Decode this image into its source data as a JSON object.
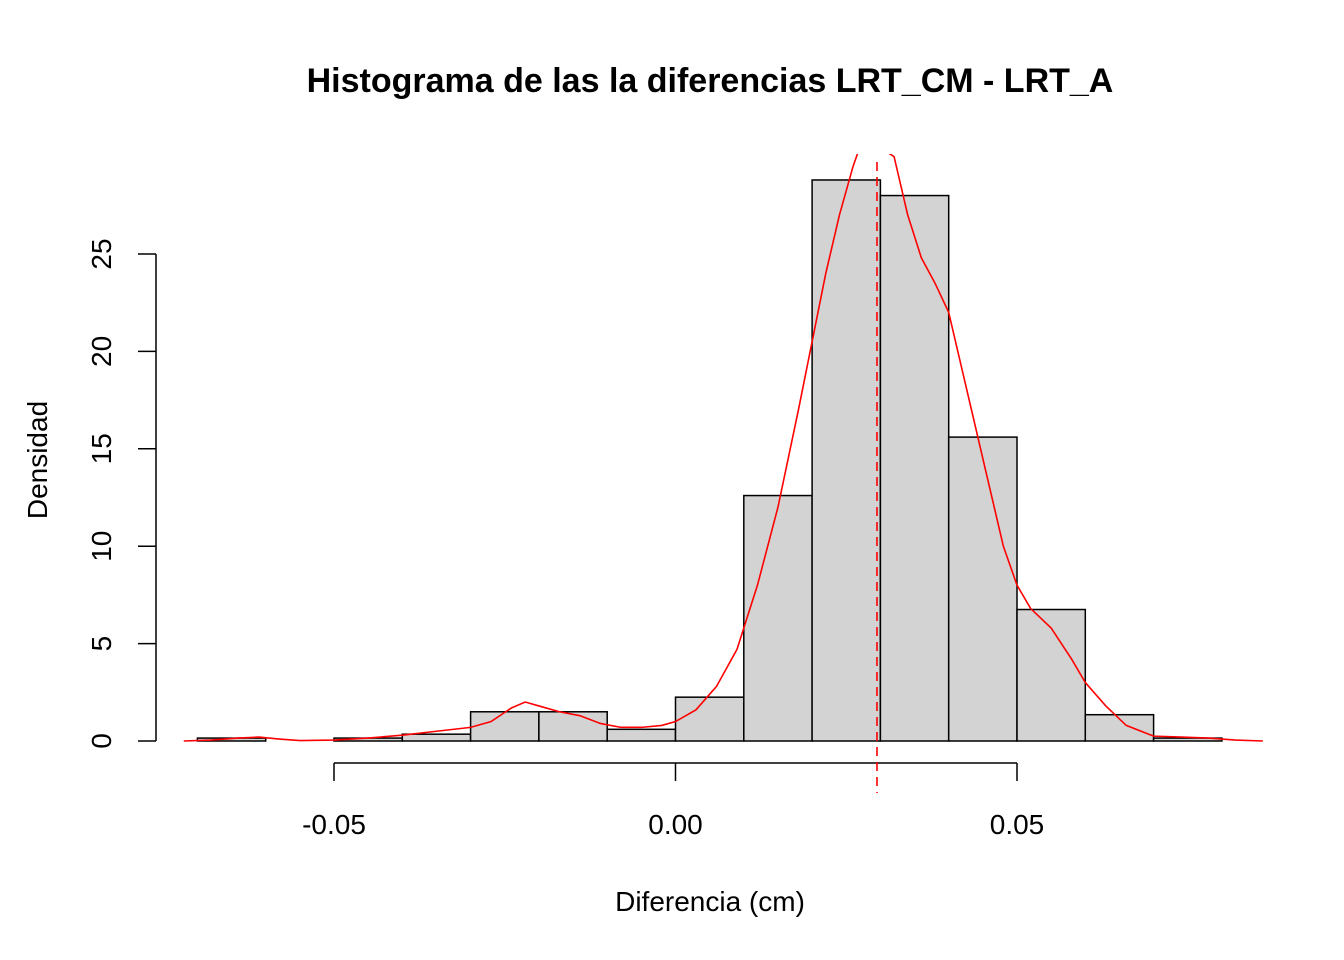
{
  "chart_data": {
    "type": "bar",
    "title": "Histograma de las la diferencias LRT_CM - LRT_A",
    "xlabel": "Diferencia (cm)",
    "ylabel": "Densidad",
    "xlim": [
      -0.07,
      0.08
    ],
    "ylim": [
      0,
      29
    ],
    "x_ticks": [
      -0.05,
      0.0,
      0.05
    ],
    "x_tick_labels": [
      "-0.05",
      "0.00",
      "0.05"
    ],
    "y_ticks": [
      0,
      5,
      10,
      15,
      20,
      25
    ],
    "y_tick_labels": [
      "0",
      "5",
      "10",
      "15",
      "20",
      "25"
    ],
    "bin_edges": [
      -0.07,
      -0.06,
      -0.05,
      -0.04,
      -0.03,
      -0.02,
      -0.01,
      0.0,
      0.01,
      0.02,
      0.03,
      0.04,
      0.05,
      0.06,
      0.07,
      0.08
    ],
    "values": [
      0.15,
      0.0,
      0.15,
      0.35,
      1.5,
      1.5,
      0.6,
      2.25,
      12.6,
      28.8,
      28.0,
      15.6,
      6.75,
      1.35,
      0.15
    ],
    "density_curve": {
      "color": "#ff0000",
      "x": [
        -0.072,
        -0.068,
        -0.064,
        -0.061,
        -0.058,
        -0.055,
        -0.05,
        -0.045,
        -0.04,
        -0.035,
        -0.03,
        -0.027,
        -0.024,
        -0.022,
        -0.02,
        -0.017,
        -0.014,
        -0.011,
        -0.008,
        -0.005,
        -0.002,
        0.0,
        0.003,
        0.006,
        0.009,
        0.012,
        0.015,
        0.018,
        0.02,
        0.022,
        0.024,
        0.026,
        0.0275,
        0.032,
        0.034,
        0.036,
        0.038,
        0.04,
        0.042,
        0.044,
        0.046,
        0.048,
        0.05,
        0.052,
        0.055,
        0.058,
        0.06,
        0.063,
        0.066,
        0.07,
        0.074,
        0.078,
        0.082,
        0.086
      ],
      "y": [
        0.0,
        0.05,
        0.15,
        0.2,
        0.1,
        0.02,
        0.05,
        0.15,
        0.3,
        0.5,
        0.7,
        1.0,
        1.7,
        2.0,
        1.8,
        1.5,
        1.3,
        0.9,
        0.7,
        0.7,
        0.8,
        1.0,
        1.6,
        2.8,
        4.7,
        8.0,
        12.0,
        17.0,
        20.5,
        24.0,
        27.0,
        29.5,
        31.0,
        30.0,
        27.0,
        24.8,
        23.5,
        22.0,
        19.0,
        16.0,
        13.0,
        10.0,
        8.0,
        6.8,
        5.8,
        4.2,
        3.0,
        1.8,
        0.8,
        0.25,
        0.2,
        0.15,
        0.05,
        0.0
      ]
    },
    "mean_line": {
      "x": 0.0295,
      "color": "#ff0000",
      "style": "dashed"
    },
    "grid": false,
    "bar_fill": "#d3d3d3",
    "bar_stroke": "#000000"
  }
}
